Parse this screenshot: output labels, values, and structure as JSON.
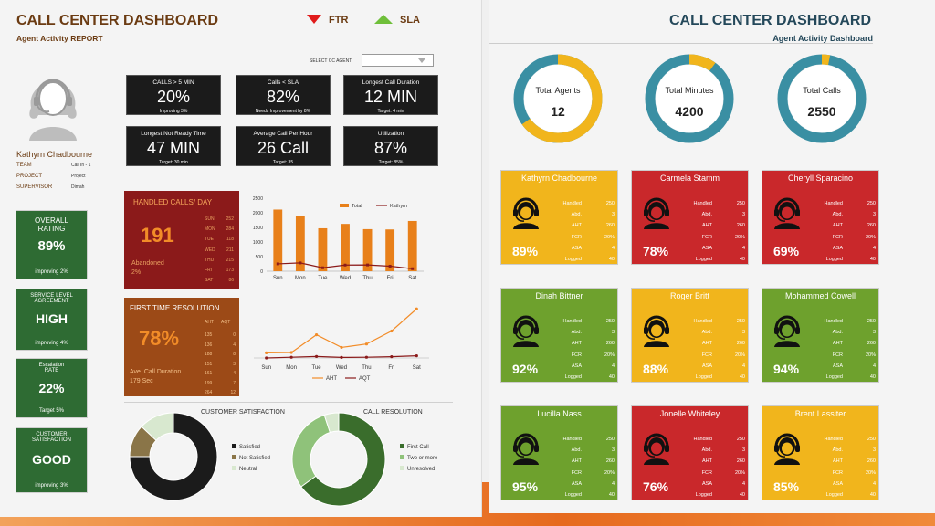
{
  "left": {
    "title": "CALL CENTER DASHBOARD",
    "subtitle": "Agent Activity REPORT",
    "legend_ftr": "FTR",
    "legend_sla": "SLA",
    "select_label": "SELECT CC AGENT",
    "agent_name": "Kathyrn Chadbourne",
    "info": [
      {
        "k": "TEAM",
        "v": "Call In - 1"
      },
      {
        "k": "PROJECT",
        "v": "Project"
      },
      {
        "k": "SUPERVISOR",
        "v": "Dimah"
      }
    ],
    "kpis": [
      {
        "label": "CALLS > 5 MIN",
        "value": "20%",
        "note": "Improving 3%"
      },
      {
        "label": "Calls < SLA",
        "value": "82%",
        "note": "Needs Improvement by 8%"
      },
      {
        "label": "Longest Call Duration",
        "value": "12 MIN",
        "note": "Target: 4 min"
      },
      {
        "label": "Longest Not Ready Time",
        "value": "47 MIN",
        "note": "Target: 30 min"
      },
      {
        "label": "Average Call Per Hour",
        "value": "26 Call",
        "note": "Target: 35"
      },
      {
        "label": "Utilization",
        "value": "87%",
        "note": "Target: 85%"
      }
    ],
    "side": [
      {
        "label": "OVERALL RATING",
        "value": "89%",
        "note": "improving 2%"
      },
      {
        "label": "SERVICE LEVEL AGREEMENT",
        "value": "HIGH",
        "note": "improving 4%"
      },
      {
        "label": "Escalation RATE",
        "value": "22%",
        "note": "Target 5%"
      },
      {
        "label": "CUSTOMER SATISFACTION",
        "value": "GOOD",
        "note": "improving 3%"
      }
    ],
    "handled": {
      "title": "HANDLED CALLS/ DAY",
      "value": "191",
      "abandoned_label": "Abandoned",
      "abandoned_value": "2%",
      "days": [
        {
          "d": "SUN",
          "v": "252"
        },
        {
          "d": "MON",
          "v": "284"
        },
        {
          "d": "TUE",
          "v": "118"
        },
        {
          "d": "WED",
          "v": "211"
        },
        {
          "d": "THU",
          "v": "215"
        },
        {
          "d": "FRI",
          "v": "173"
        },
        {
          "d": "SAT",
          "v": "86"
        }
      ]
    },
    "ftr": {
      "title": "FIRST TIME RESOLUTION",
      "value": "78%",
      "acd_label": "Ave. Call Duration",
      "acd_value": "179 Sec",
      "h1": "AHT",
      "h2": "AQT",
      "rows": [
        [
          "135",
          "0"
        ],
        [
          "136",
          "4"
        ],
        [
          "188",
          "8"
        ],
        [
          "151",
          "3"
        ],
        [
          "161",
          "4"
        ],
        [
          "199",
          "7"
        ],
        [
          "264",
          "12"
        ]
      ]
    },
    "csat_title": "CUSTOMER SATISFACTION",
    "cres_title": "CALL RESOLUTION",
    "csat_legend": [
      "Satisfied",
      "Not Satisfied",
      "Neutral"
    ],
    "cres_legend": [
      "First Call",
      "Two or more",
      "Unresolved"
    ]
  },
  "right": {
    "title": "CALL CENTER DASHBOARD",
    "subtitle": "Agent Activity Dashboard",
    "totals": [
      {
        "label": "Total Agents",
        "value": "12"
      },
      {
        "label": "Total Minutes",
        "value": "4200"
      },
      {
        "label": "Total Calls",
        "value": "2550"
      }
    ],
    "stat_labels": [
      "Handled",
      "Abd.",
      "AHT",
      "FCR",
      "ASA",
      "Logged"
    ],
    "agents": [
      {
        "name": "Kathyrn Chadbourne",
        "pct": "89%",
        "color": "#f1b51c",
        "stats": [
          "250",
          "3",
          "260",
          "20%",
          "4",
          "40"
        ]
      },
      {
        "name": "Carmela Stamm",
        "pct": "78%",
        "color": "#c9282b",
        "stats": [
          "250",
          "3",
          "260",
          "20%",
          "4",
          "40"
        ]
      },
      {
        "name": "Cheryll Sparacino",
        "pct": "69%",
        "color": "#c9282b",
        "stats": [
          "250",
          "3",
          "260",
          "20%",
          "4",
          "40"
        ]
      },
      {
        "name": "Dinah Bittner",
        "pct": "92%",
        "color": "#6ea12d",
        "stats": [
          "250",
          "3",
          "260",
          "20%",
          "4",
          "40"
        ]
      },
      {
        "name": "Roger Britt",
        "pct": "88%",
        "color": "#f1b51c",
        "stats": [
          "250",
          "3",
          "260",
          "20%",
          "4",
          "40"
        ]
      },
      {
        "name": "Mohammed Cowell",
        "pct": "94%",
        "color": "#6ea12d",
        "stats": [
          "250",
          "3",
          "260",
          "20%",
          "4",
          "40"
        ]
      },
      {
        "name": "Lucilla Nass",
        "pct": "95%",
        "color": "#6ea12d",
        "stats": [
          "250",
          "3",
          "260",
          "20%",
          "4",
          "40"
        ]
      },
      {
        "name": "Jonelle Whiteley",
        "pct": "76%",
        "color": "#c9282b",
        "stats": [
          "250",
          "3",
          "260",
          "20%",
          "4",
          "40"
        ]
      },
      {
        "name": "Brent Lassiter",
        "pct": "85%",
        "color": "#f1b51c",
        "stats": [
          "250",
          "3",
          "260",
          "20%",
          "4",
          "40"
        ]
      }
    ]
  },
  "chart_data": [
    {
      "type": "bar",
      "categories": [
        "Sun",
        "Mon",
        "Tue",
        "Wed",
        "Thu",
        "Fri",
        "Sat"
      ],
      "ylim": [
        0,
        2500
      ],
      "yticks": [
        "2500",
        "2000",
        "1500",
        "1000",
        "500",
        "0"
      ],
      "series": [
        {
          "name": "Total",
          "values": [
            2110,
            1890,
            1470,
            1620,
            1440,
            1430,
            1720
          ]
        },
        {
          "name": "Kathyrn",
          "values": [
            252,
            284,
            118,
            211,
            215,
            173,
            86
          ]
        }
      ]
    },
    {
      "type": "line",
      "categories": [
        "Sun",
        "Mon",
        "Tue",
        "Wed",
        "Thu",
        "Fri",
        "Sat"
      ],
      "series": [
        {
          "name": "AHT",
          "values": [
            135,
            136,
            188,
            151,
            161,
            199,
            264
          ]
        },
        {
          "name": "AQT",
          "values": [
            0,
            4,
            8,
            3,
            4,
            7,
            12
          ]
        }
      ]
    },
    {
      "type": "pie",
      "categories": [
        "Satisfied",
        "Not Satisfied",
        "Neutral"
      ],
      "values": [
        75,
        12,
        13
      ]
    },
    {
      "type": "pie",
      "categories": [
        "First Call",
        "Two or more",
        "Unresolved"
      ],
      "values": [
        65,
        30,
        5
      ]
    }
  ],
  "colors": {
    "orange": "#e8801a",
    "maroon": "#8b1a1a",
    "brown": "#9c4a17",
    "green": "#2e6b33",
    "teal": "#3a8fa3",
    "yellow": "#f1b51c"
  }
}
